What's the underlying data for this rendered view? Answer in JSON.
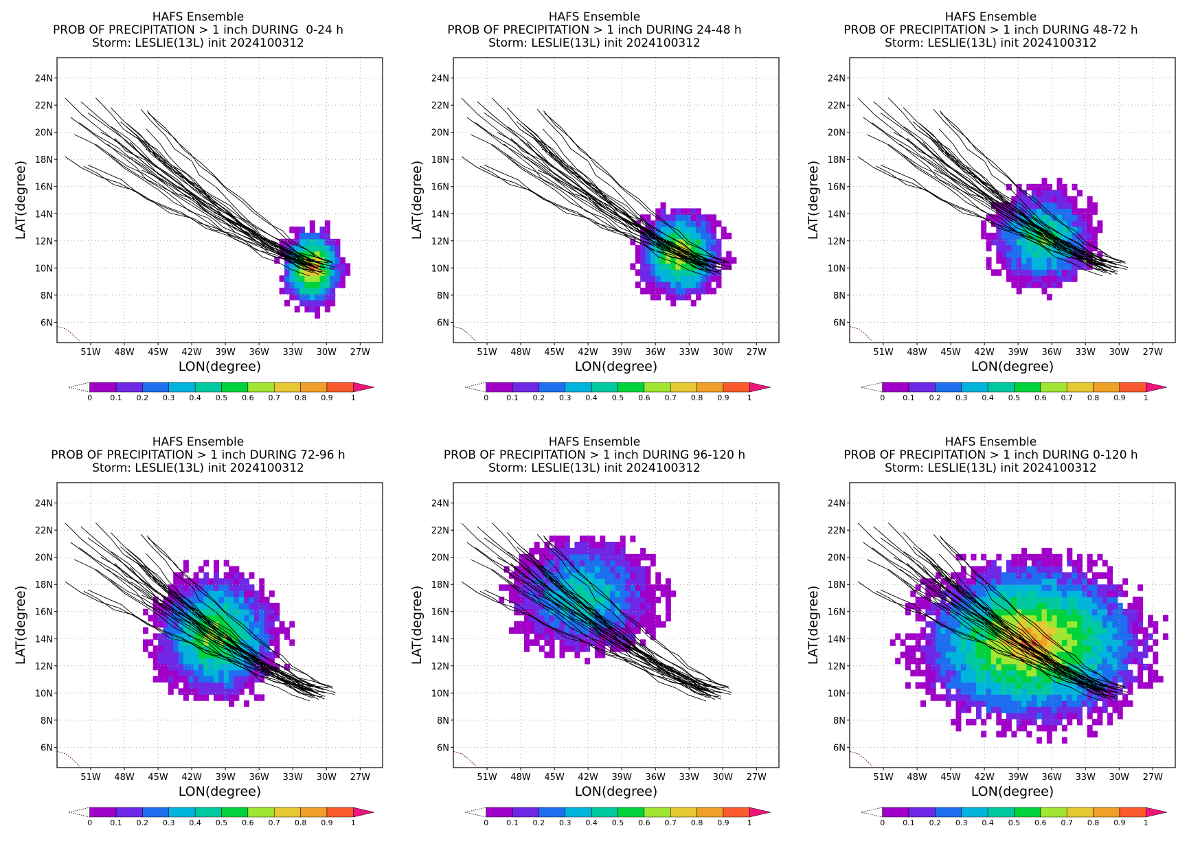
{
  "figure": {
    "panels": [
      {
        "title1": "HAFS Ensemble",
        "title2": "PROB OF PRECIPITATION > 1 inch DURING  0-24 h",
        "title3": "Storm: LESLIE(13L) init 2024100312"
      },
      {
        "title1": "HAFS Ensemble",
        "title2": "PROB OF PRECIPITATION > 1 inch DURING 24-48 h",
        "title3": "Storm: LESLIE(13L) init 2024100312"
      },
      {
        "title1": "HAFS Ensemble",
        "title2": "PROB OF PRECIPITATION > 1 inch DURING 48-72 h",
        "title3": "Storm: LESLIE(13L) init 2024100312"
      },
      {
        "title1": "HAFS Ensemble",
        "title2": "PROB OF PRECIPITATION > 1 inch DURING 72-96 h",
        "title3": "Storm: LESLIE(13L) init 2024100312"
      },
      {
        "title1": "HAFS Ensemble",
        "title2": "PROB OF PRECIPITATION > 1 inch DURING 96-120 h",
        "title3": "Storm: LESLIE(13L) init 2024100312"
      },
      {
        "title1": "HAFS Ensemble",
        "title2": "PROB OF PRECIPITATION > 1 inch DURING 0-120 h",
        "title3": "Storm: LESLIE(13L) init 2024100312"
      }
    ],
    "xlabel": "LON(degree)",
    "ylabel": "LAT(degree)",
    "lat_ticks": [
      "6N",
      "8N",
      "10N",
      "12N",
      "14N",
      "16N",
      "18N",
      "20N",
      "22N",
      "24N"
    ],
    "lat_values": [
      6,
      8,
      10,
      12,
      14,
      16,
      18,
      20,
      22,
      24
    ],
    "lon_ticks": [
      "51W",
      "48W",
      "45W",
      "42W",
      "39W",
      "36W",
      "33W",
      "30W",
      "27W"
    ],
    "lon_values": [
      -51,
      -48,
      -45,
      -42,
      -39,
      -36,
      -33,
      -30,
      -27
    ],
    "lon_range": [
      -54,
      -25
    ],
    "lat_range": [
      4.5,
      25.5
    ],
    "grid": true,
    "colorbar": {
      "labels": [
        "0",
        "0.1",
        "0.2",
        "0.3",
        "0.4",
        "0.5",
        "0.6",
        "0.7",
        "0.8",
        "0.9",
        "1"
      ],
      "colors": [
        "#a000c8",
        "#6e28e6",
        "#1e6ef0",
        "#00b4dc",
        "#00c8a0",
        "#00d23c",
        "#a0e632",
        "#e6c832",
        "#f0a028",
        "#fa5a2d",
        "#f0147d"
      ],
      "under_color": "#ffffff",
      "over_color": "#f0147d"
    }
  },
  "map_data": {
    "track_center_start": [
      -30.5,
      10.0
    ],
    "track_center_end": [
      -51.0,
      19.0
    ],
    "ensemble_members": 31,
    "coast_color": "#8b3a3a",
    "prob_regions": [
      {
        "panel": 0,
        "blobs": [
          {
            "lon": -31.5,
            "lat": 9.8,
            "rlon": 3.0,
            "rlat": 3.2,
            "peak": 0.9
          }
        ]
      },
      {
        "panel": 1,
        "blobs": [
          {
            "lon": -34.0,
            "lat": 10.8,
            "rlon": 4.2,
            "rlat": 3.6,
            "peak": 0.8
          }
        ]
      },
      {
        "panel": 2,
        "blobs": [
          {
            "lon": -37.0,
            "lat": 12.0,
            "rlon": 5.0,
            "rlat": 4.0,
            "peak": 0.6
          }
        ]
      },
      {
        "panel": 3,
        "blobs": [
          {
            "lon": -40.0,
            "lat": 14.0,
            "rlon": 6.0,
            "rlat": 5.0,
            "peak": 0.7
          }
        ]
      },
      {
        "panel": 4,
        "blobs": [
          {
            "lon": -42.5,
            "lat": 17.0,
            "rlon": 7.0,
            "rlat": 4.5,
            "peak": 0.5
          }
        ]
      },
      {
        "panel": 5,
        "blobs": [
          {
            "lon": -38.0,
            "lat": 13.5,
            "rlon": 11.0,
            "rlat": 6.5,
            "peak": 0.9
          }
        ]
      }
    ]
  }
}
